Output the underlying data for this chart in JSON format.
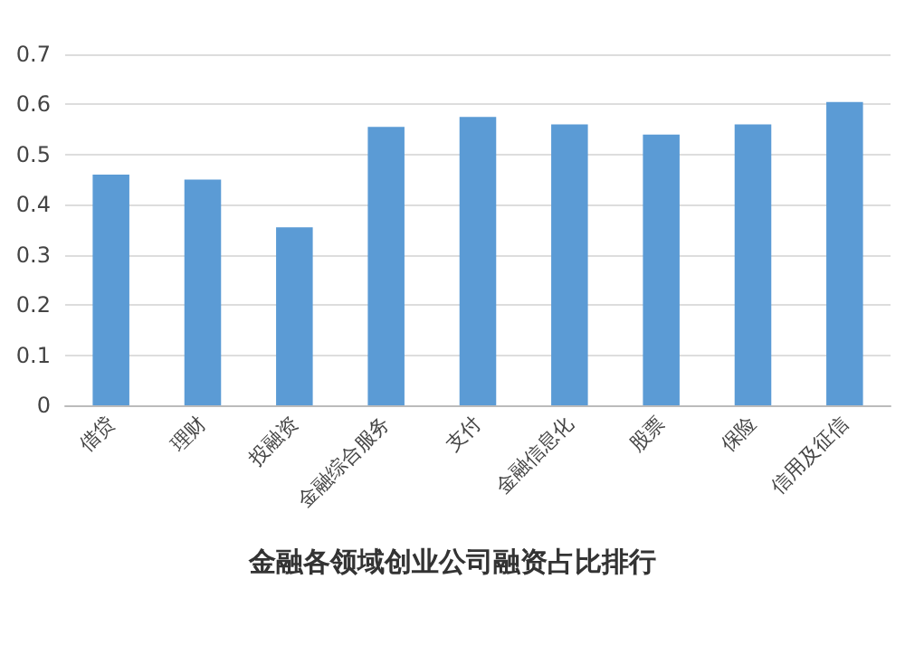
{
  "chart_data": {
    "type": "bar",
    "title": "金融各领域创业公司融资占比排行",
    "categories": [
      "借贷",
      "理财",
      "投融资",
      "金融综合服务",
      "支付",
      "金融信息化",
      "股票",
      "保险",
      "信用及征信"
    ],
    "values": [
      0.46,
      0.45,
      0.355,
      0.555,
      0.575,
      0.56,
      0.54,
      0.56,
      0.605
    ],
    "color": "#5b9bd5",
    "ylim": [
      0,
      0.7
    ],
    "yticks": [
      0,
      0.1,
      0.2,
      0.3,
      0.4,
      0.5,
      0.6,
      0.7
    ],
    "grid": "y"
  }
}
